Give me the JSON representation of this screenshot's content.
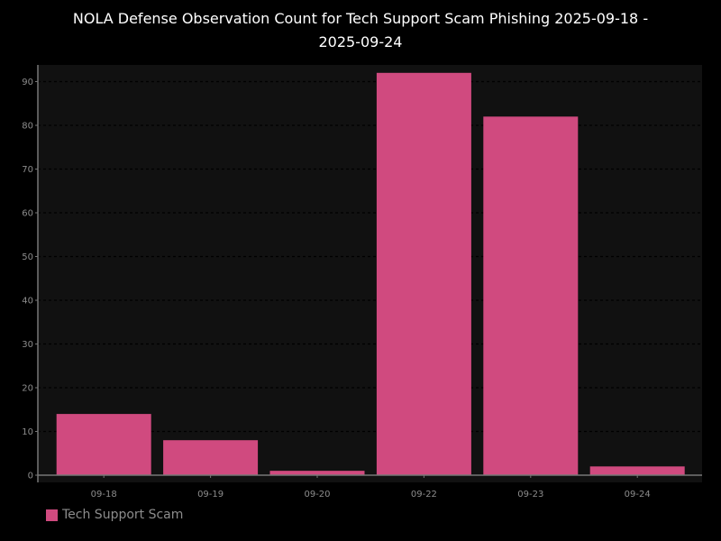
{
  "chart_data": {
    "type": "bar",
    "title_line1": "NOLA Defense Observation Count for Tech Support Scam Phishing 2025-09-18 -",
    "title_line2": "2025-09-24",
    "categories": [
      "09-18",
      "09-19",
      "09-20",
      "09-22",
      "09-23",
      "09-24"
    ],
    "series": [
      {
        "name": "Tech Support Scam",
        "values": [
          14,
          8,
          1,
          92,
          82,
          2
        ],
        "color": "#d04a7f"
      }
    ],
    "xlabel": "",
    "ylabel": "",
    "ylim": [
      0,
      94
    ],
    "yticks": [
      0,
      10,
      20,
      30,
      40,
      50,
      60,
      70,
      80,
      90
    ],
    "grid": true,
    "legend_position": "bottom-left",
    "plot_background": "#111111",
    "page_background": "#000000"
  }
}
